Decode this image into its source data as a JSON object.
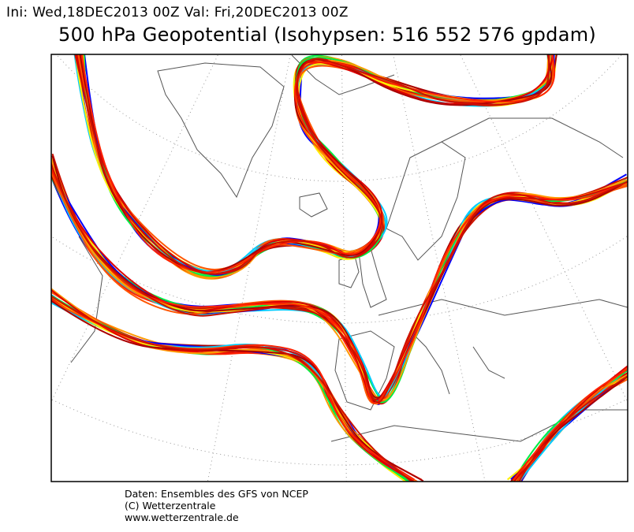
{
  "header": {
    "init_label": "Ini: Wed,18DEC2013 00Z Val: Fri,20DEC2013 00Z",
    "title": "500 hPa Geopotential (Isohypsen: 516 552 576 gpdam)"
  },
  "credits": {
    "line1": "Daten: Ensembles des GFS von NCEP",
    "line2": "(C) Wetterzentrale",
    "line3": "www.wetterzentrale.de"
  },
  "map": {
    "region": "North Atlantic / Europe",
    "isohypsen_levels_gpdam": [
      516,
      552,
      576
    ],
    "member_colors": [
      "#0000ff",
      "#00ccff",
      "#00ee44",
      "#ffee00",
      "#ff9900",
      "#ff5500",
      "#dd0000",
      "#aa0000",
      "#ff2200",
      "#cc1100"
    ],
    "coastline_color": "#555555",
    "grid_color": "#888888"
  }
}
